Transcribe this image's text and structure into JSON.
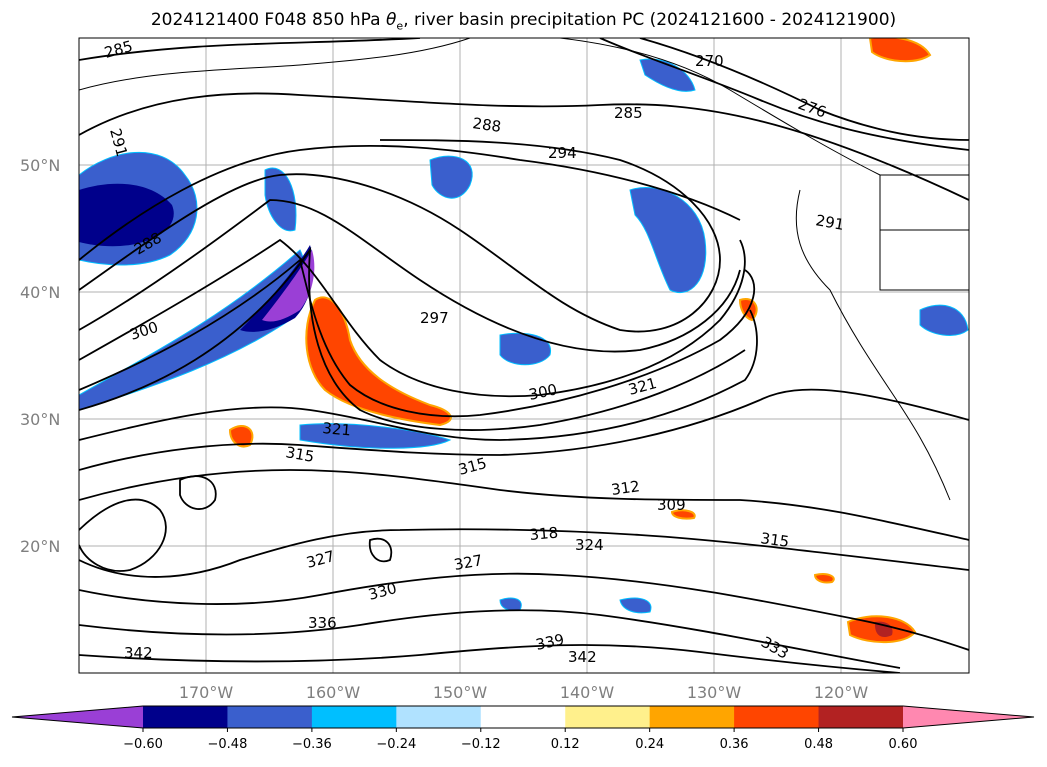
{
  "title": {
    "text_prefix": "2024121400 F048 850 hPa ",
    "theta": "θ",
    "sub": "e",
    "text_suffix": ", river basin precipitation PC (2024121600 - 2024121900)"
  },
  "map": {
    "lat_labels": [
      "50°N",
      "40°N",
      "30°N",
      "20°N"
    ],
    "lon_labels": [
      "170°W",
      "160°W",
      "150°W",
      "140°W",
      "130°W",
      "120°W"
    ],
    "contour_labels": [
      "285",
      "288",
      "291",
      "294",
      "297",
      "300",
      "309",
      "312",
      "315",
      "318",
      "321",
      "324",
      "327",
      "330",
      "333",
      "336",
      "339",
      "342",
      "270",
      "276"
    ]
  },
  "colorbar": {
    "ticks": [
      "−0.60",
      "−0.48",
      "−0.36",
      "−0.24",
      "−0.12",
      "0.12",
      "0.24",
      "0.36",
      "0.48",
      "0.60"
    ],
    "colors": [
      "#9a3fd6",
      "#00008b",
      "#3a5fcd",
      "#00bfff",
      "#b0e2ff",
      "#ffffff",
      "#fff08c",
      "#ffa500",
      "#ff4500",
      "#b22222",
      "#ff88b0"
    ]
  }
}
